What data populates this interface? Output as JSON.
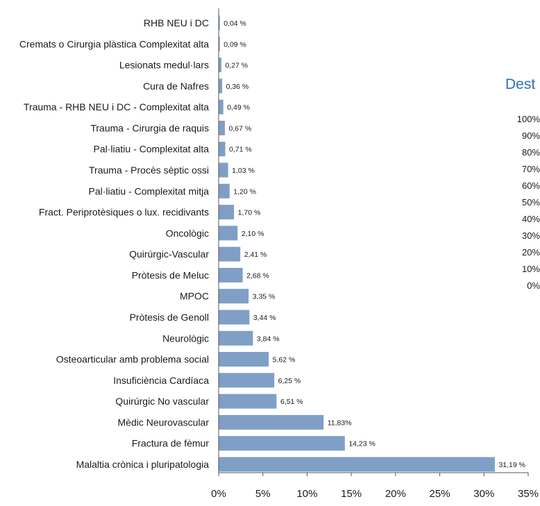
{
  "chart_data": {
    "type": "bar",
    "orientation": "horizontal",
    "categories": [
      "RHB NEU i DC",
      "Cremats o Cirurgia plàstica  Complexitat  alta",
      "Lesionats medul·lars",
      "Cura de Nafres",
      "Trauma - RHB NEU i DC - Complexitat  alta",
      "Trauma -  Cirurgia de raquis",
      "Pal·liatiu - Complexitat  alta",
      "Trauma - Procès sèptic ossi",
      "Pal·liatiu - Complexitat mitja",
      "Fract. Periprotèsiques o lux. recidivants",
      "Oncològic",
      "Quirúrgic-Vascular",
      "Pròtesis de  Meluc",
      "MPOC",
      "Pròtesis de Genoll",
      "Neurològic",
      "Osteoarticular amb problema social",
      "Insuficiència Cardíaca",
      "Quirúrgic No vascular",
      "Mèdic Neurovascular",
      "Fractura de fèmur",
      "Malaltia crònica i pluripatologia"
    ],
    "values": [
      0.04,
      0.09,
      0.27,
      0.36,
      0.49,
      0.67,
      0.71,
      1.03,
      1.2,
      1.7,
      2.1,
      2.41,
      2.68,
      3.35,
      3.44,
      3.84,
      5.62,
      6.25,
      6.51,
      11.83,
      14.23,
      31.19
    ],
    "value_labels": [
      "0,04 %",
      "0,09 %",
      "0,27 %",
      "0,36 %",
      "0,49 %",
      "0,67 %",
      "0,71 %",
      "1,03 %",
      "1,20 %",
      "1,70 %",
      "2,10 %",
      "2,41 %",
      "2,68 %",
      "3,35 %",
      "3,44 %",
      "3,84 %",
      "5,62 %",
      "6,25 %",
      "6,51 %",
      "11,83%",
      "14,23 %",
      "31,19 %"
    ],
    "x_ticks": [
      "0%",
      "5%",
      "10%",
      "15%",
      "20%",
      "25%",
      "30%",
      "35%"
    ],
    "xlim": [
      0,
      35
    ],
    "grid": false,
    "bar_color": "#7f9fc6",
    "title": "",
    "xlabel": "",
    "ylabel": ""
  },
  "side_panel": {
    "title": "Dest",
    "title_color": "#2e6fb0",
    "y_ticks": [
      "100%",
      "90%",
      "80%",
      "70%",
      "60%",
      "50%",
      "40%",
      "30%",
      "20%",
      "10%",
      "0%"
    ]
  }
}
